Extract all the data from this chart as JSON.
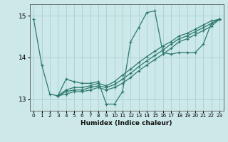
{
  "title": "",
  "xlabel": "Humidex (Indice chaleur)",
  "ylabel": "",
  "xlim": [
    -0.5,
    23.5
  ],
  "ylim": [
    12.72,
    15.28
  ],
  "yticks": [
    13,
    14,
    15
  ],
  "xticks": [
    0,
    1,
    2,
    3,
    4,
    5,
    6,
    7,
    8,
    9,
    10,
    11,
    12,
    13,
    14,
    15,
    16,
    17,
    18,
    19,
    20,
    21,
    22,
    23
  ],
  "bg_color": "#cce8e8",
  "grid_color": "#add4d4",
  "line_color": "#2e7a6e",
  "lines": [
    {
      "x": [
        0,
        1,
        2,
        3,
        4,
        5,
        6,
        7,
        8,
        9,
        10,
        11,
        12,
        13,
        14,
        15,
        16,
        17,
        18,
        19,
        20,
        21,
        22,
        23
      ],
      "y": [
        14.92,
        13.82,
        13.12,
        13.08,
        13.48,
        13.42,
        13.38,
        13.38,
        13.42,
        12.88,
        12.88,
        13.18,
        14.38,
        14.72,
        15.08,
        15.12,
        14.12,
        14.08,
        14.12,
        14.12,
        14.12,
        14.32,
        14.82,
        14.92
      ]
    },
    {
      "x": [
        3,
        4,
        5,
        6,
        7,
        8,
        9,
        10,
        11,
        12,
        13,
        14,
        15,
        16,
        17,
        18,
        19,
        20,
        21,
        22,
        23
      ],
      "y": [
        13.08,
        13.22,
        13.28,
        13.28,
        13.32,
        13.38,
        13.32,
        13.42,
        13.58,
        13.72,
        13.88,
        14.02,
        14.15,
        14.28,
        14.38,
        14.52,
        14.58,
        14.68,
        14.78,
        14.88,
        14.92
      ]
    },
    {
      "x": [
        3,
        4,
        5,
        6,
        7,
        8,
        9,
        10,
        11,
        12,
        13,
        14,
        15,
        16,
        17,
        18,
        19,
        20,
        21,
        22,
        23
      ],
      "y": [
        13.08,
        13.18,
        13.22,
        13.22,
        13.28,
        13.32,
        13.28,
        13.35,
        13.48,
        13.62,
        13.78,
        13.92,
        14.05,
        14.18,
        14.32,
        14.45,
        14.52,
        14.62,
        14.72,
        14.82,
        14.92
      ]
    },
    {
      "x": [
        3,
        4,
        5,
        6,
        7,
        8,
        9,
        10,
        11,
        12,
        13,
        14,
        15,
        16,
        17,
        18,
        19,
        20,
        21,
        22,
        23
      ],
      "y": [
        13.08,
        13.12,
        13.18,
        13.18,
        13.22,
        13.28,
        13.22,
        13.28,
        13.38,
        13.52,
        13.68,
        13.82,
        13.95,
        14.08,
        14.22,
        14.38,
        14.45,
        14.55,
        14.65,
        14.75,
        14.92
      ]
    }
  ]
}
